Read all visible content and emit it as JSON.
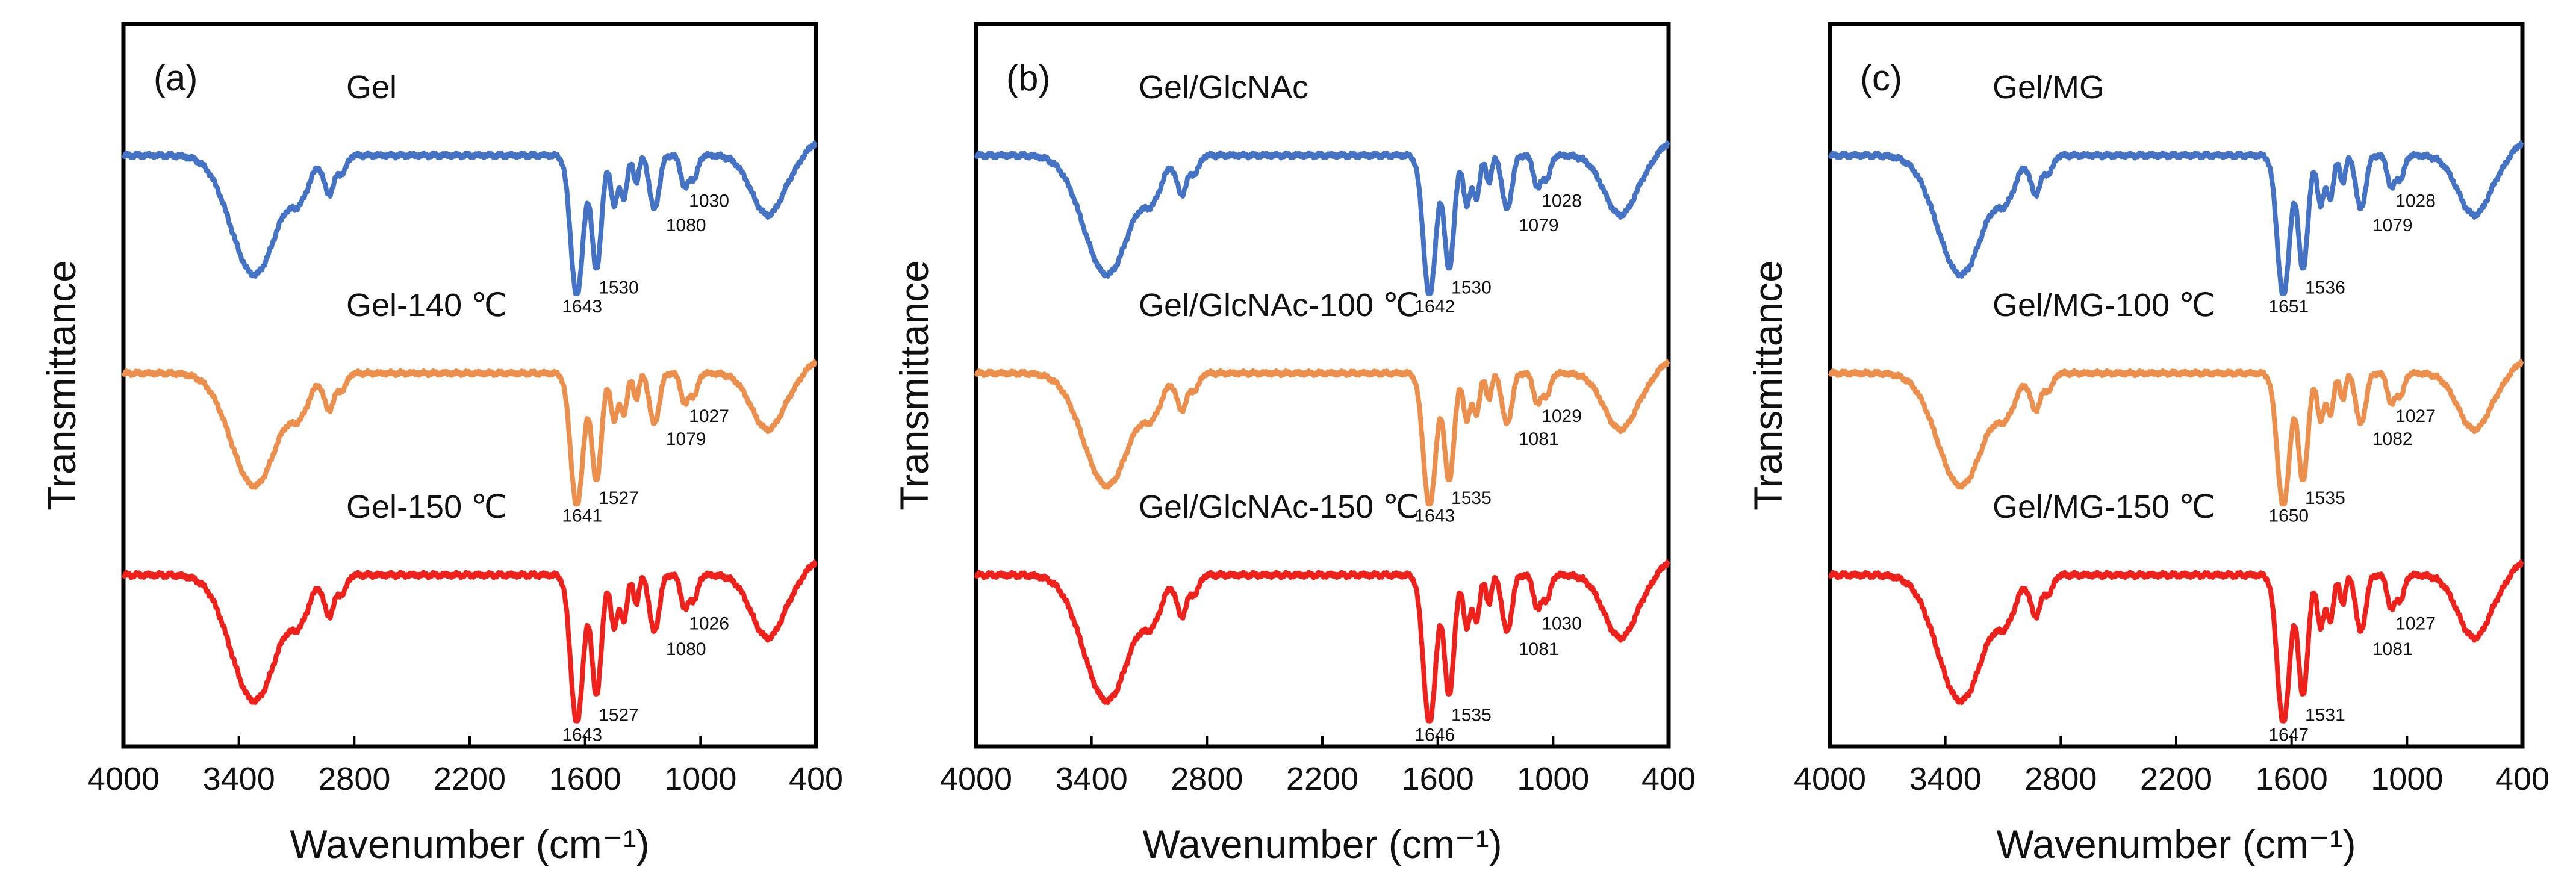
{
  "chart_data": [
    {
      "type": "line",
      "panel_label": "(a)",
      "xlabel": "Wavenumber (cm⁻¹)",
      "ylabel": "Transmittance",
      "xlim": [
        4000,
        400
      ],
      "x_reversed": true,
      "xticks": [
        "4000",
        "3400",
        "2800",
        "2200",
        "1600",
        "1000",
        "400"
      ],
      "series": [
        {
          "name": "Gel",
          "color": "#4472C4",
          "offset": 0,
          "peaks": [
            "1643",
            "1530",
            "1080",
            "1030"
          ]
        },
        {
          "name": "Gel-140 ℃",
          "color": "#ED8F4C",
          "offset": 1,
          "peaks": [
            "1641",
            "1527",
            "1079",
            "1027"
          ]
        },
        {
          "name": "Gel-150 ℃",
          "color": "#F0201A",
          "offset": 2,
          "peaks": [
            "1643",
            "1527",
            "1080",
            "1026"
          ]
        }
      ]
    },
    {
      "type": "line",
      "panel_label": "(b)",
      "xlabel": "Wavenumber (cm⁻¹)",
      "ylabel": "Transmittance",
      "xlim": [
        4000,
        400
      ],
      "x_reversed": true,
      "xticks": [
        "4000",
        "3400",
        "2800",
        "2200",
        "1600",
        "1000",
        "400"
      ],
      "series": [
        {
          "name": "Gel/GlcNAc",
          "color": "#4472C4",
          "offset": 0,
          "peaks": [
            "1642",
            "1530",
            "1079",
            "1028"
          ]
        },
        {
          "name": "Gel/GlcNAc-100 ℃",
          "color": "#ED8F4C",
          "offset": 1,
          "peaks": [
            "1643",
            "1535",
            "1081",
            "1029"
          ]
        },
        {
          "name": "Gel/GlcNAc-150 ℃",
          "color": "#F0201A",
          "offset": 2,
          "peaks": [
            "1646",
            "1535",
            "1081",
            "1030"
          ]
        }
      ]
    },
    {
      "type": "line",
      "panel_label": "(c)",
      "xlabel": "Wavenumber (cm⁻¹)",
      "ylabel": "Transmittance",
      "xlim": [
        4000,
        400
      ],
      "x_reversed": true,
      "xticks": [
        "4000",
        "3400",
        "2800",
        "2200",
        "1600",
        "1000",
        "400"
      ],
      "series": [
        {
          "name": "Gel/MG",
          "color": "#4472C4",
          "offset": 0,
          "peaks": [
            "1651",
            "1536",
            "1079",
            "1028"
          ]
        },
        {
          "name": "Gel/MG-100 ℃",
          "color": "#ED8F4C",
          "offset": 1,
          "peaks": [
            "1650",
            "1535",
            "1082",
            "1027"
          ]
        },
        {
          "name": "Gel/MG-150 ℃",
          "color": "#F0201A",
          "offset": 2,
          "peaks": [
            "1647",
            "1531",
            "1081",
            "1027"
          ]
        }
      ]
    }
  ]
}
